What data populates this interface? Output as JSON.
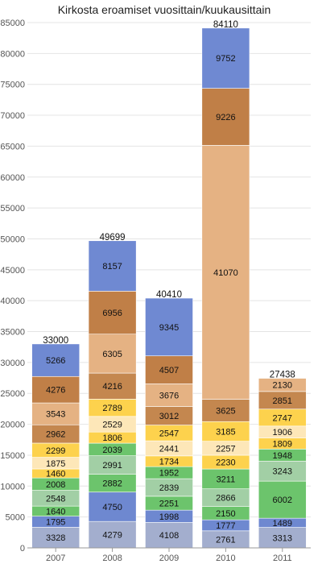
{
  "chart_data": {
    "type": "bar",
    "stacked": true,
    "title": "Kirkosta eroamiset vuosittain/kuukausittain",
    "xlabel": "",
    "ylabel": "",
    "categories": [
      "2007",
      "2008",
      "2009",
      "2010",
      "2011"
    ],
    "ylim": [
      0,
      85000
    ],
    "yticks": [
      0,
      5000,
      10000,
      15000,
      20000,
      25000,
      30000,
      35000,
      40000,
      45000,
      50000,
      55000,
      60000,
      65000,
      70000,
      75000,
      80000,
      85000
    ],
    "grid": true,
    "legend": "none",
    "colors": [
      "#a3aece",
      "#6e88d0",
      "#a2cfa5",
      "#6cc46c",
      "#fde39a",
      "#fdd24d",
      "#fde7b8",
      "#fdd14c",
      "#c4874f",
      "#e5b283",
      "#c07f47",
      "#6f89d2"
    ],
    "segments": [
      [
        3328,
        1795,
        1640,
        2548,
        2008,
        1460,
        1875,
        2299,
        2962,
        3543,
        4276,
        5266
      ],
      [
        4279,
        4750,
        2882,
        2991,
        2039,
        1806,
        2529,
        2789,
        4216,
        6305,
        6956,
        8157
      ],
      [
        4108,
        1998,
        2251,
        2839,
        1952,
        1734,
        2441,
        2547,
        3012,
        3676,
        4507,
        9345
      ],
      [
        2761,
        1777,
        2150,
        2866,
        3211,
        2230,
        2257,
        3185,
        3625,
        41070,
        9226,
        9752
      ],
      [
        3313,
        1489,
        6002,
        3243,
        1948,
        1809,
        1906,
        2747,
        2851,
        2130
      ]
    ],
    "segment_colors": [
      [
        "#a3aece",
        "#6e88d0",
        "#6cc46c",
        "#a2cfa5",
        "#6cc46c",
        "#fdd24d",
        "#fde7b8",
        "#fdd24d",
        "#c4874f",
        "#e5b283",
        "#c07f47",
        "#6f89d2"
      ],
      [
        "#a3aece",
        "#6e88d0",
        "#6cc46c",
        "#a2cfa5",
        "#6cc46c",
        "#fdd24d",
        "#fde7b8",
        "#fdd24d",
        "#c4874f",
        "#e5b283",
        "#c07f47",
        "#6f89d2"
      ],
      [
        "#a3aece",
        "#6e88d0",
        "#6cc46c",
        "#a2cfa5",
        "#6cc46c",
        "#fdd24d",
        "#fde7b8",
        "#fdd24d",
        "#c4874f",
        "#e5b283",
        "#c07f47",
        "#6f89d2"
      ],
      [
        "#a3aece",
        "#6e88d0",
        "#6cc46c",
        "#a2cfa5",
        "#6cc46c",
        "#fdd24d",
        "#fde7b8",
        "#fdd24d",
        "#c4874f",
        "#e5b283",
        "#c07f47",
        "#6f89d2"
      ],
      [
        "#a3aece",
        "#6e88d0",
        "#6cc46c",
        "#a2cfa5",
        "#6cc46c",
        "#fdd24d",
        "#fde7b8",
        "#fdd24d",
        "#c4874f",
        "#e5b283"
      ]
    ],
    "totals": [
      33000,
      49699,
      40410,
      84110,
      27438
    ]
  }
}
